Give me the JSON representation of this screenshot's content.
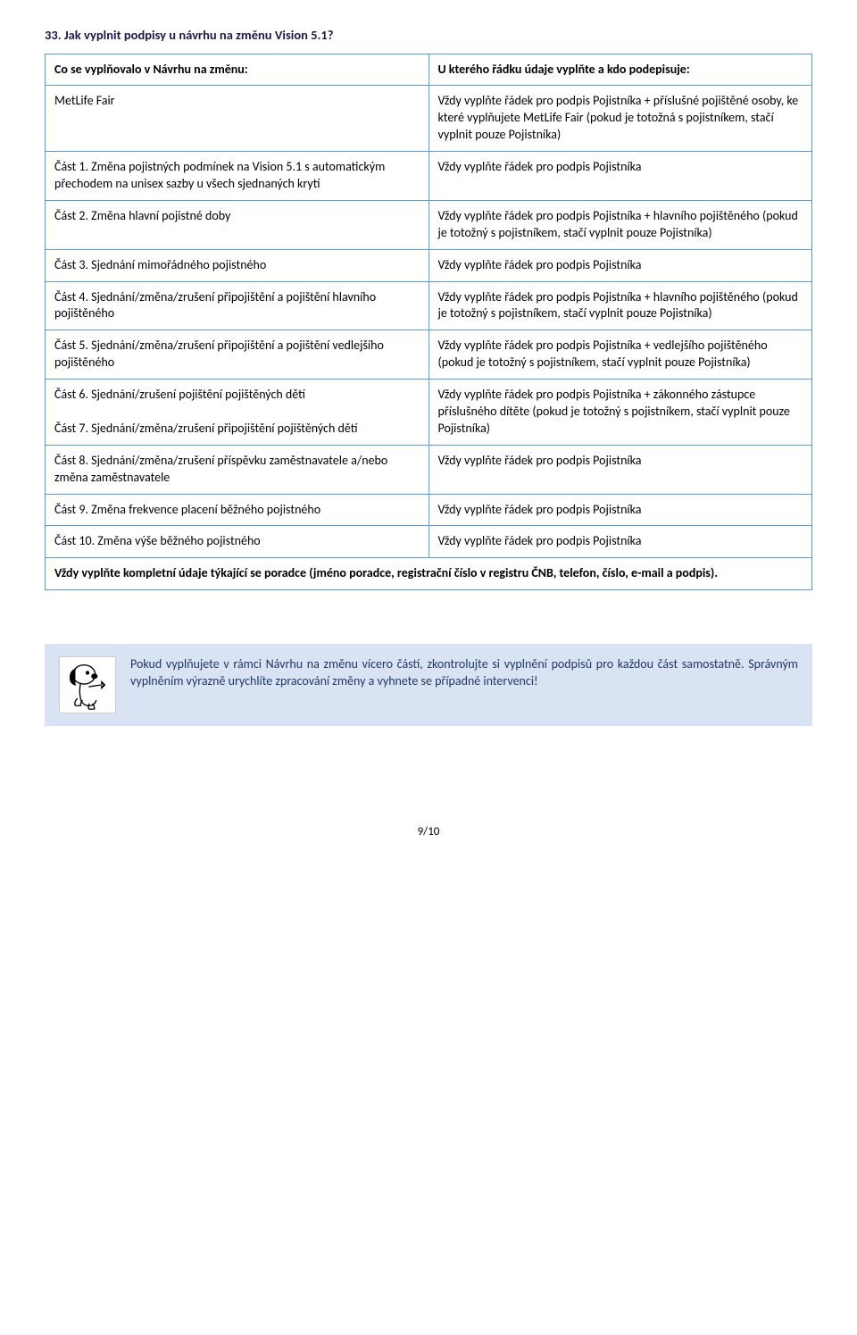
{
  "heading": "33.  Jak vyplnit podpisy u návrhu na změnu Vision 5.1?",
  "table": {
    "header_left": "Co se vyplňovalo v Návrhu na změnu:",
    "header_right": "U kterého řádku údaje vyplňte a kdo podepisuje:",
    "rows": [
      {
        "left": "MetLife Fair",
        "right": "Vždy vyplňte řádek pro podpis Pojistníka + příslušné pojištěné osoby, ke které vyplňujete MetLife Fair (pokud je totožná s pojistníkem, stačí vyplnit pouze Pojistníka)"
      },
      {
        "left": "Část 1. Změna pojistných podmínek na Vision 5.1 s automatickým přechodem na unisex sazby u všech sjednaných krytí",
        "right": "Vždy vyplňte řádek pro podpis Pojistníka"
      },
      {
        "left": "Část 2. Změna hlavní pojistné doby",
        "right": "Vždy vyplňte řádek pro podpis Pojistníka + hlavního pojištěného (pokud je totožný s pojistníkem, stačí vyplnit pouze Pojistníka)"
      },
      {
        "left": "Část 3. Sjednání mimořádného pojistného",
        "right": "Vždy vyplňte řádek pro podpis Pojistníka"
      },
      {
        "left": "Část 4. Sjednání/změna/zrušení připojištění a pojištění hlavního pojištěného",
        "right": "Vždy vyplňte řádek pro podpis Pojistníka + hlavního pojištěného (pokud je totožný s pojistníkem, stačí vyplnit pouze Pojistníka)"
      },
      {
        "left": "Část 5. Sjednání/změna/zrušení připojištění a pojištění vedlejšího pojištěného",
        "right": "Vždy vyplňte řádek pro podpis Pojistníka + vedlejšího pojištěného (pokud je totožný s pojistníkem, stačí vyplnit pouze Pojistníka)"
      },
      {
        "left": "Část 6. Sjednání/zrušení pojištění pojištěných dětí\n\nČást 7. Sjednání/změna/zrušení připojištění pojištěných dětí",
        "right": "Vždy vyplňte řádek pro podpis Pojistníka + zákonného zástupce příslušného dítěte (pokud je totožný s pojistníkem, stačí vyplnit pouze Pojistníka)"
      },
      {
        "left": "Část 8. Sjednání/změna/zrušení příspěvku zaměstnavatele a/nebo změna zaměstnavatele",
        "right": "Vždy vyplňte řádek pro podpis Pojistníka"
      },
      {
        "left": "Část 9. Změna frekvence placení běžného pojistného",
        "right": "Vždy vyplňte řádek pro podpis Pojistníka"
      },
      {
        "left": "Část 10. Změna výše běžného pojistného",
        "right": "Vždy vyplňte řádek pro podpis Pojistníka"
      }
    ],
    "footer": "Vždy vyplňte kompletní údaje týkající se poradce (jméno poradce, registrační číslo v registru ČNB, telefon, číslo, e-mail a podpis)."
  },
  "note": "Pokud vyplňujete v rámci Návrhu na změnu vícero částí, zkontrolujte si vyplnění podpisů pro každou část samostatně. Správným vyplněním výrazně urychlíte zpracování změny a vyhnete se případné intervenci!",
  "page_number": "9/10",
  "colors": {
    "table_border": "#5b9bd5",
    "note_bg": "#dae3f3",
    "note_text": "#1f3864",
    "heading_text": "#1a1a4a"
  }
}
